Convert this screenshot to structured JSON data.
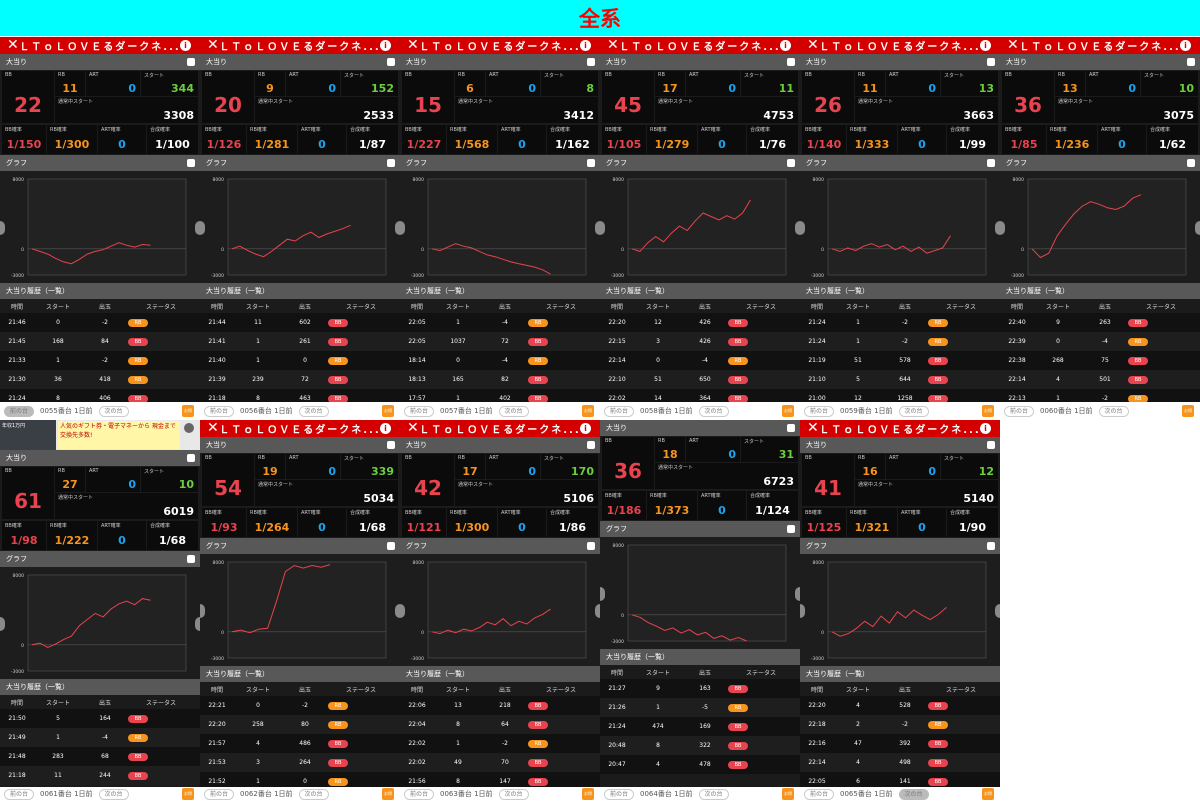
{
  "banner": {
    "title": "全系"
  },
  "ui": {
    "section_bonus": "大当り",
    "section_graph": "グラフ",
    "section_history": "大当り履歴（一覧）",
    "label_bb": "BB",
    "label_rb": "RB",
    "label_art": "ART",
    "label_start": "スタート",
    "label_normal_start": "通常中スタート",
    "label_bb_rate": "BB確率",
    "label_rb_rate": "RB確率",
    "label_art_rate": "ART確率",
    "label_total_rate": "合成確率",
    "col_time": "時間",
    "col_start": "スタート",
    "col_out": "出玉",
    "col_status": "ステータス",
    "prev": "前の台",
    "next": "次の台",
    "ago": "1日前",
    "axis_top": "8000",
    "axis_mid": "0",
    "axis_bottom": "-3000",
    "ad_text": "人気のギフト券・電子マネーから 現金まで交換先多数!",
    "ad_img_label": "年収1万円",
    "footer_icon": "お得"
  },
  "colors": {
    "bb": "#e8434e",
    "rb": "#f7941d",
    "art": "#1ea5f0",
    "start": "#6bcf3c",
    "header_red": "#d40000",
    "banner_cyan": "#00ffff"
  },
  "panels": [
    {
      "title": "ＬＴｏＬＯＶＥるダークネ...",
      "machine": "0055番台",
      "bb": "22",
      "rb": "11",
      "art": "0",
      "start": "344",
      "normal_start": "3308",
      "bb_rate": "1/150",
      "rb_rate": "1/300",
      "art_rate": "0",
      "total_rate": "1/100",
      "graph": [
        0,
        -300,
        -600,
        -1100,
        -1500,
        -1700,
        -1200,
        -600,
        -300,
        -100,
        300,
        700,
        400,
        200,
        500,
        400
      ],
      "history": [
        {
          "time": "21:46",
          "start": "0",
          "out": "-2",
          "status": "RB"
        },
        {
          "time": "21:45",
          "start": "168",
          "out": "84",
          "status": "BB"
        },
        {
          "time": "21:33",
          "start": "1",
          "out": "-2",
          "status": "RB"
        },
        {
          "time": "21:30",
          "start": "36",
          "out": "418",
          "status": "RB"
        },
        {
          "time": "21:24",
          "start": "8",
          "out": "406",
          "status": "BB"
        }
      ]
    },
    {
      "title": "ＬＴｏＬＯＶＥるダークネ...",
      "machine": "0056番台",
      "bb": "20",
      "rb": "9",
      "art": "0",
      "start": "152",
      "normal_start": "2533",
      "bb_rate": "1/126",
      "rb_rate": "1/281",
      "art_rate": "0",
      "total_rate": "1/87",
      "graph": [
        0,
        300,
        -200,
        -600,
        -900,
        -300,
        400,
        1100,
        900,
        1500,
        1900,
        1300,
        1700,
        2000,
        2300,
        2700
      ],
      "history": [
        {
          "time": "21:44",
          "start": "11",
          "out": "602",
          "status": "BB"
        },
        {
          "time": "21:41",
          "start": "1",
          "out": "261",
          "status": "BB"
        },
        {
          "time": "21:40",
          "start": "1",
          "out": "0",
          "status": "RB"
        },
        {
          "time": "21:39",
          "start": "239",
          "out": "72",
          "status": "BB"
        },
        {
          "time": "21:18",
          "start": "8",
          "out": "463",
          "status": "BB"
        }
      ]
    },
    {
      "title": "ＬＴｏＬＯＶＥるダークネ...",
      "machine": "0057番台",
      "bb": "15",
      "rb": "6",
      "art": "0",
      "start": "8",
      "normal_start": "3412",
      "bb_rate": "1/227",
      "rb_rate": "1/568",
      "art_rate": "0",
      "total_rate": "1/162",
      "graph": [
        0,
        -200,
        200,
        600,
        300,
        100,
        -300,
        -700,
        -900,
        -1200,
        -1500,
        -1700,
        -1900,
        -2100,
        -2400,
        -2900
      ],
      "history": [
        {
          "time": "22:05",
          "start": "1",
          "out": "-4",
          "status": "RB"
        },
        {
          "time": "22:05",
          "start": "1037",
          "out": "72",
          "status": "BB"
        },
        {
          "time": "18:14",
          "start": "0",
          "out": "-4",
          "status": "RB"
        },
        {
          "time": "18:13",
          "start": "165",
          "out": "82",
          "status": "BB"
        },
        {
          "time": "17:57",
          "start": "1",
          "out": "402",
          "status": "BB"
        }
      ]
    },
    {
      "title": "ＬＴｏＬＯＶＥるダークネ...",
      "machine": "0058番台",
      "bb": "45",
      "rb": "17",
      "art": "0",
      "start": "11",
      "normal_start": "4753",
      "bb_rate": "1/105",
      "rb_rate": "1/279",
      "art_rate": "0",
      "total_rate": "1/76",
      "graph": [
        0,
        -300,
        700,
        1400,
        800,
        1800,
        2600,
        2100,
        3200,
        4100,
        3700,
        3300,
        3800,
        3400,
        4100,
        5600
      ],
      "history": [
        {
          "time": "22:20",
          "start": "12",
          "out": "426",
          "status": "BB"
        },
        {
          "time": "22:15",
          "start": "3",
          "out": "426",
          "status": "BB"
        },
        {
          "time": "22:14",
          "start": "0",
          "out": "-4",
          "status": "RB"
        },
        {
          "time": "22:10",
          "start": "51",
          "out": "650",
          "status": "BB"
        },
        {
          "time": "22:02",
          "start": "14",
          "out": "364",
          "status": "BB"
        }
      ]
    },
    {
      "title": "ＬＴｏＬＯＶＥるダークネ...",
      "machine": "0059番台",
      "bb": "26",
      "rb": "11",
      "art": "0",
      "start": "13",
      "normal_start": "3663",
      "bb_rate": "1/140",
      "rb_rate": "1/333",
      "art_rate": "0",
      "total_rate": "1/99",
      "graph": [
        0,
        -300,
        100,
        -200,
        300,
        600,
        200,
        500,
        -100,
        300,
        -300,
        200,
        -500,
        -200,
        100,
        1500
      ],
      "history": [
        {
          "time": "21:24",
          "start": "1",
          "out": "-2",
          "status": "RB"
        },
        {
          "time": "21:24",
          "start": "1",
          "out": "-2",
          "status": "RB"
        },
        {
          "time": "21:19",
          "start": "51",
          "out": "578",
          "status": "BB"
        },
        {
          "time": "21:10",
          "start": "5",
          "out": "644",
          "status": "BB"
        },
        {
          "time": "21:00",
          "start": "12",
          "out": "1258",
          "status": "BB"
        }
      ]
    },
    {
      "title": "ＬＴｏＬＯＶＥるダークネ...",
      "machine": "0060番台",
      "bb": "36",
      "rb": "13",
      "art": "0",
      "start": "10",
      "normal_start": "3075",
      "bb_rate": "1/85",
      "rb_rate": "1/236",
      "art_rate": "0",
      "total_rate": "1/62",
      "graph": [
        0,
        -1000,
        -500,
        1500,
        2800,
        4000,
        4900,
        5400,
        5100,
        4700,
        4500,
        4900,
        5800,
        6200
      ],
      "history": [
        {
          "time": "22:40",
          "start": "9",
          "out": "263",
          "status": "BB"
        },
        {
          "time": "22:39",
          "start": "0",
          "out": "-4",
          "status": "RB"
        },
        {
          "time": "22:38",
          "start": "268",
          "out": "75",
          "status": "BB"
        },
        {
          "time": "22:14",
          "start": "4",
          "out": "501",
          "status": "BB"
        },
        {
          "time": "22:13",
          "start": "1",
          "out": "-2",
          "status": "RB"
        }
      ]
    },
    {
      "title": "",
      "machine": "0061番台",
      "bb": "61",
      "rb": "27",
      "art": "0",
      "start": "10",
      "normal_start": "6019",
      "bb_rate": "1/98",
      "rb_rate": "1/222",
      "art_rate": "0",
      "total_rate": "1/68",
      "graph": [
        0,
        200,
        -300,
        100,
        600,
        1000,
        2200,
        2900,
        3600,
        3200,
        4100,
        4700,
        5000,
        4600,
        5300,
        5100
      ],
      "history": [
        {
          "time": "21:50",
          "start": "5",
          "out": "164",
          "status": "BB"
        },
        {
          "time": "21:49",
          "start": "1",
          "out": "-4",
          "status": "RB"
        },
        {
          "time": "21:48",
          "start": "283",
          "out": "68",
          "status": "BB"
        },
        {
          "time": "21:18",
          "start": "11",
          "out": "244",
          "status": "BB"
        }
      ]
    },
    {
      "title": "ＬＴｏＬＯＶＥるダークネ...",
      "machine": "0062番台",
      "bb": "54",
      "rb": "19",
      "art": "0",
      "start": "339",
      "normal_start": "5034",
      "bb_rate": "1/93",
      "rb_rate": "1/264",
      "art_rate": "0",
      "total_rate": "1/68",
      "graph": [
        0,
        200,
        -100,
        300,
        400,
        3500,
        6900,
        7600,
        7300,
        7600,
        7400,
        7700
      ],
      "history": [
        {
          "time": "22:21",
          "start": "0",
          "out": "-2",
          "status": "RB"
        },
        {
          "time": "22:20",
          "start": "258",
          "out": "80",
          "status": "RB"
        },
        {
          "time": "21:57",
          "start": "4",
          "out": "486",
          "status": "BB"
        },
        {
          "time": "21:53",
          "start": "3",
          "out": "264",
          "status": "BB"
        },
        {
          "time": "21:52",
          "start": "1",
          "out": "0",
          "status": "RB"
        }
      ]
    },
    {
      "title": "ＬＴｏＬＯＶＥるダークネ...",
      "machine": "0063番台",
      "bb": "42",
      "rb": "17",
      "art": "0",
      "start": "170",
      "normal_start": "5106",
      "bb_rate": "1/121",
      "rb_rate": "1/300",
      "art_rate": "0",
      "total_rate": "1/86",
      "graph": [
        0,
        -200,
        200,
        -100,
        300,
        100,
        500,
        1100,
        800,
        1500,
        700,
        1200,
        900,
        1600,
        2000,
        2600
      ],
      "history": [
        {
          "time": "22:06",
          "start": "13",
          "out": "218",
          "status": "BB"
        },
        {
          "time": "22:04",
          "start": "8",
          "out": "64",
          "status": "BB"
        },
        {
          "time": "22:02",
          "start": "1",
          "out": "-2",
          "status": "RB"
        },
        {
          "time": "22:02",
          "start": "49",
          "out": "70",
          "status": "BB"
        },
        {
          "time": "21:56",
          "start": "8",
          "out": "147",
          "status": "BB"
        }
      ]
    },
    {
      "title": "",
      "machine": "0064番台",
      "bb": "36",
      "rb": "18",
      "art": "0",
      "start": "31",
      "normal_start": "6723",
      "bb_rate": "1/186",
      "rb_rate": "1/373",
      "art_rate": "0",
      "total_rate": "1/124",
      "graph": [
        0,
        -300,
        -900,
        -1300,
        -1800,
        -1500,
        -2100,
        -1700,
        -2300,
        -2000,
        -2700,
        -2400,
        -2900,
        -2600,
        -3000
      ],
      "history": [
        {
          "time": "21:27",
          "start": "9",
          "out": "163",
          "status": "BB"
        },
        {
          "time": "21:26",
          "start": "1",
          "out": "-5",
          "status": "RB"
        },
        {
          "time": "21:24",
          "start": "474",
          "out": "169",
          "status": "BB"
        },
        {
          "time": "20:48",
          "start": "8",
          "out": "322",
          "status": "BB"
        },
        {
          "time": "20:47",
          "start": "4",
          "out": "478",
          "status": "BB"
        }
      ]
    },
    {
      "title": "ＬＴｏＬＯＶＥるダークネ...",
      "machine": "0065番台",
      "bb": "41",
      "rb": "16",
      "art": "0",
      "start": "12",
      "normal_start": "5140",
      "bb_rate": "1/125",
      "rb_rate": "1/321",
      "art_rate": "0",
      "total_rate": "1/90",
      "graph": [
        0,
        -500,
        -200,
        400,
        1200,
        600,
        1800,
        1000,
        2300,
        1600,
        2500,
        1900,
        1400,
        2000,
        2800
      ],
      "history": [
        {
          "time": "22:20",
          "start": "4",
          "out": "528",
          "status": "BB"
        },
        {
          "time": "22:18",
          "start": "2",
          "out": "-2",
          "status": "RB"
        },
        {
          "time": "22:16",
          "start": "47",
          "out": "392",
          "status": "BB"
        },
        {
          "time": "22:14",
          "start": "4",
          "out": "498",
          "status": "BB"
        },
        {
          "time": "22:05",
          "start": "6",
          "out": "141",
          "status": "BB"
        }
      ]
    }
  ]
}
